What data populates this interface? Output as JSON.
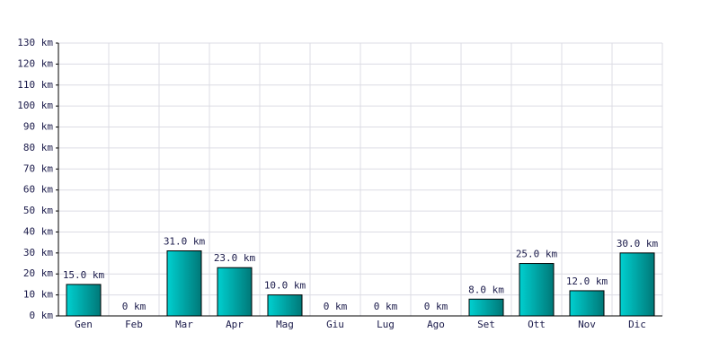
{
  "chart_data": {
    "type": "bar",
    "categories": [
      "Gen",
      "Feb",
      "Mar",
      "Apr",
      "Mag",
      "Giu",
      "Lug",
      "Ago",
      "Set",
      "Ott",
      "Nov",
      "Dic"
    ],
    "values": [
      15,
      0,
      31,
      23,
      10,
      0,
      0,
      0,
      8,
      25,
      12,
      30
    ],
    "value_labels": [
      "15.0 km",
      "0 km",
      "31.0 km",
      "23.0 km",
      "10.0 km",
      "0 km",
      "0 km",
      "0 km",
      "8.0 km",
      "25.0 km",
      "12.0 km",
      "30.0 km"
    ],
    "color": "#00d0d0",
    "ylim": [
      0,
      130
    ],
    "yticks": [
      {
        "value": 0,
        "label": "0 km"
      },
      {
        "value": 10,
        "label": "10 km"
      },
      {
        "value": 20,
        "label": "20 km"
      },
      {
        "value": 30,
        "label": "30 km"
      },
      {
        "value": 40,
        "label": "40 km"
      },
      {
        "value": 50,
        "label": "50 km"
      },
      {
        "value": 60,
        "label": "60 km"
      },
      {
        "value": 70,
        "label": "70 km"
      },
      {
        "value": 80,
        "label": "80 km"
      },
      {
        "value": 90,
        "label": "90 km"
      },
      {
        "value": 100,
        "label": "100 km"
      },
      {
        "value": 110,
        "label": "110 km"
      },
      {
        "value": 120,
        "label": "120 km"
      },
      {
        "value": 130,
        "label": "130 km"
      }
    ],
    "grid": true
  }
}
